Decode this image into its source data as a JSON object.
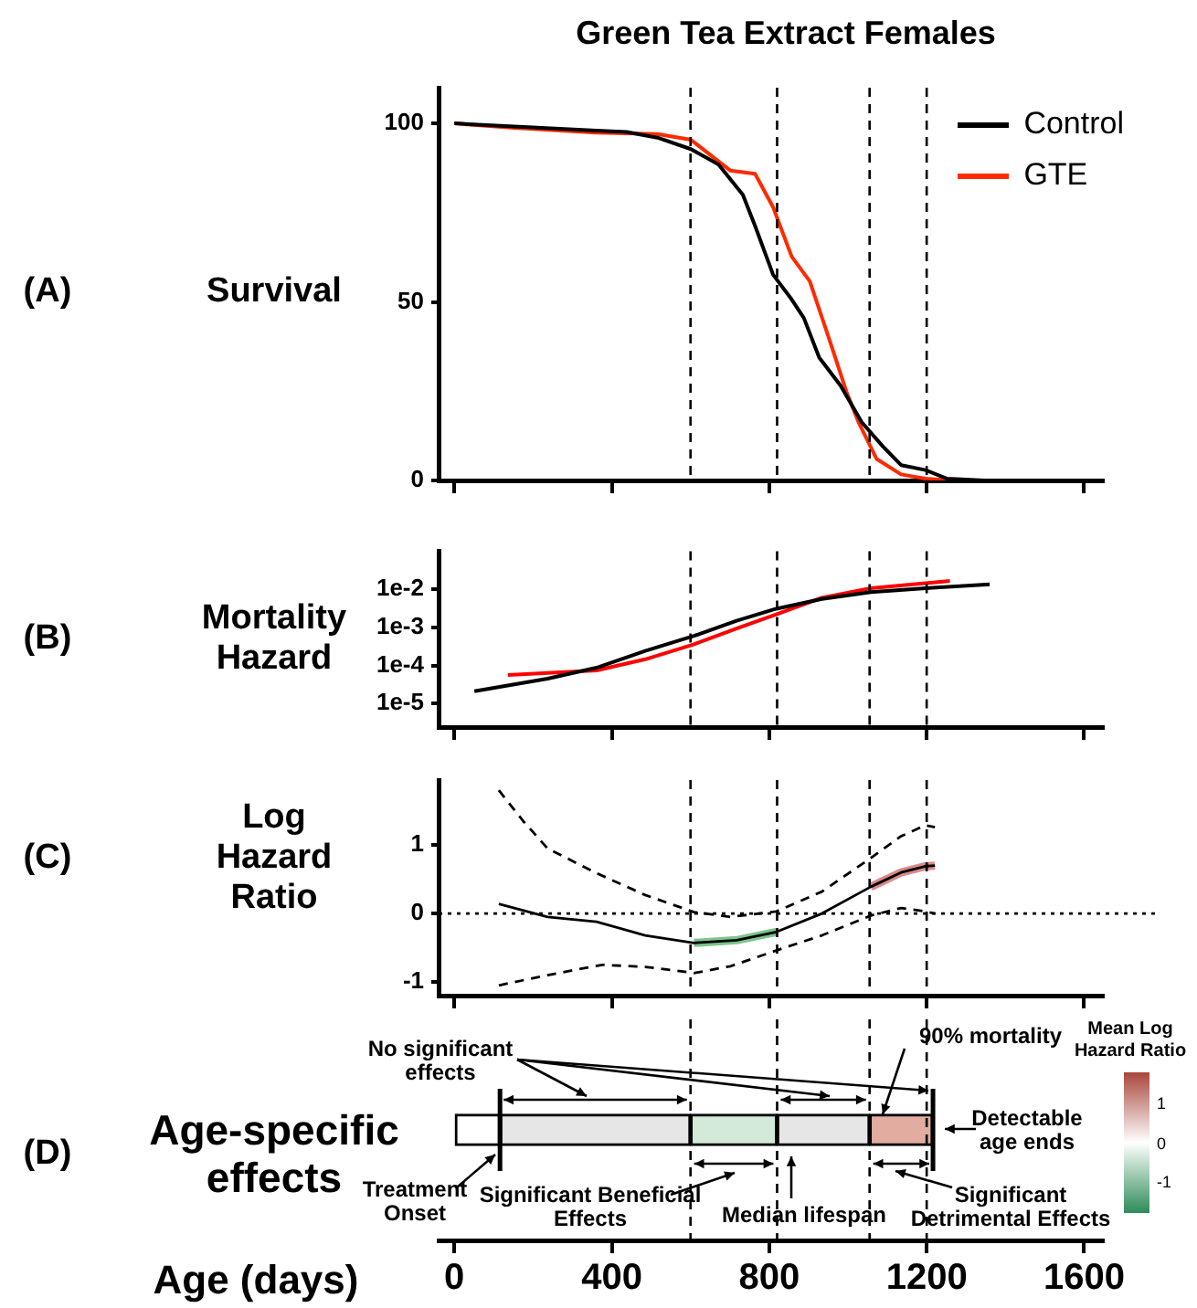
{
  "chart_data": [
    {
      "type": "line",
      "title": "Green Tea Extract Females",
      "ylabel": "Survival",
      "annotations": [
        "(A)"
      ],
      "xlim": [
        -40,
        1650
      ],
      "xticks": [
        {
          "value": 0,
          "label": null
        },
        {
          "value": 400,
          "label": null
        },
        {
          "value": 800,
          "label": null
        },
        {
          "value": 1200,
          "label": null
        },
        {
          "value": 1600,
          "label": null
        }
      ],
      "ylim": [
        0,
        110
      ],
      "yticks": [
        0,
        50,
        100
      ],
      "tick_labels": "y",
      "legend": "top right",
      "grid": false,
      "marker": "none",
      "ref_lines": [
        {
          "axis": "x",
          "value": 600,
          "line_style": "dashed"
        },
        {
          "axis": "x",
          "value": 820,
          "line_style": "dashed"
        },
        {
          "axis": "x",
          "value": 1055,
          "line_style": "dashed"
        },
        {
          "axis": "x",
          "value": 1200,
          "line_style": "dashed"
        }
      ],
      "series": [
        {
          "name": "Control",
          "color": "#000000",
          "x": [
            0,
            361,
            438,
            516,
            601,
            671,
            733,
            764,
            810,
            857,
            888,
            927,
            981,
            1035,
            1089,
            1135,
            1197,
            1252,
            1345
          ],
          "values": [
            100,
            98,
            97.6,
            96,
            92.8,
            88.5,
            80,
            71.3,
            57.6,
            50.7,
            45.5,
            34.4,
            26.6,
            16.3,
            9.5,
            4.3,
            2.9,
            0.5,
            0
          ]
        },
        {
          "name": "GTE",
          "color": "#ff2a00",
          "x": [
            0,
            144,
            361,
            516,
            601,
            701,
            764,
            810,
            857,
            903,
            950,
            996,
            1027,
            1073,
            1135,
            1197,
            1259
          ],
          "values": [
            100,
            98.8,
            97.4,
            97,
            95.4,
            86.8,
            85.9,
            76.5,
            62.7,
            55.8,
            40.4,
            24.9,
            16.3,
            6,
            1.7,
            0.5,
            0
          ]
        }
      ]
    },
    {
      "type": "line",
      "ylabel": "Mortality Hazard",
      "annotations": [
        "(B)"
      ],
      "log": "y",
      "xlim": [
        -40,
        1650
      ],
      "xticks": [
        {
          "value": 0,
          "label": null
        },
        {
          "value": 400,
          "label": null
        },
        {
          "value": 800,
          "label": null
        },
        {
          "value": 1200,
          "label": null
        },
        {
          "value": 1600,
          "label": null
        }
      ],
      "ylim": [
        2.4e-06,
        0.1
      ],
      "yticks": [
        {
          "value": 0.01,
          "label": "1e-2"
        },
        {
          "value": 0.001,
          "label": "1e-3"
        },
        {
          "value": 0.0001,
          "label": "1e-4"
        },
        {
          "value": 1e-05,
          "label": "1e-5"
        }
      ],
      "tick_labels": "y",
      "grid": false,
      "marker": "none",
      "ref_lines": [
        {
          "axis": "x",
          "value": 600,
          "line_style": "dashed"
        },
        {
          "axis": "x",
          "value": 820,
          "line_style": "dashed"
        },
        {
          "axis": "x",
          "value": 1055,
          "line_style": "dashed"
        },
        {
          "axis": "x",
          "value": 1200,
          "line_style": "dashed"
        }
      ],
      "series": [
        {
          "color": "#000000",
          "x": [
            51,
            237,
            361,
            485,
            609,
            717,
            818,
            934,
            1058,
            1197,
            1360
          ],
          "values": [
            2.1e-05,
            4.5e-05,
            8.7e-05,
            0.00024,
            0.0006,
            0.0015,
            0.0031,
            0.0056,
            0.0085,
            0.0107,
            0.0135
          ]
        },
        {
          "color": "#ff0000",
          "x": [
            136,
            361,
            485,
            609,
            717,
            818,
            934,
            1058,
            1259
          ],
          "values": [
            5.6e-05,
            7.4e-05,
            0.000145,
            0.00036,
            0.00093,
            0.0022,
            0.006,
            0.0107,
            0.0166
          ]
        }
      ]
    },
    {
      "type": "line",
      "ylabel": "Log Hazard Ratio",
      "annotations": [
        "(C)"
      ],
      "xlim": [
        -40,
        1650
      ],
      "xticks": [
        {
          "value": 0,
          "label": null
        },
        {
          "value": 400,
          "label": null
        },
        {
          "value": 800,
          "label": null
        },
        {
          "value": 1200,
          "label": null
        },
        {
          "value": 1600,
          "label": null
        }
      ],
      "ylim": [
        -1.2,
        1.95
      ],
      "yticks": [
        -1,
        0,
        1
      ],
      "tick_labels": "y",
      "grid": false,
      "marker": "none",
      "ref_lines": [
        {
          "axis": "y",
          "value": 0,
          "line_style": "dotted"
        },
        {
          "axis": "x",
          "value": 600,
          "line_style": "dashed"
        },
        {
          "axis": "x",
          "value": 820,
          "line_style": "dashed"
        },
        {
          "axis": "x",
          "value": 1055,
          "line_style": "dashed"
        },
        {
          "axis": "x",
          "value": 1200,
          "line_style": "dashed"
        }
      ],
      "series": [
        {
          "color": "#000000",
          "line_style": "solid",
          "x": [
            113,
            237,
            361,
            485,
            609,
            717,
            818,
            934,
            1058,
            1135,
            1197,
            1221
          ],
          "values": [
            0.14,
            -0.05,
            -0.12,
            -0.32,
            -0.43,
            -0.39,
            -0.27,
            0,
            0.39,
            0.6,
            0.69,
            0.7
          ]
        },
        {
          "color": "#000000",
          "line_style": "dashed",
          "x": [
            113,
            175,
            237,
            361,
            485,
            609,
            702,
            818,
            934,
            1058,
            1135,
            1197,
            1221
          ],
          "values": [
            1.8,
            1.35,
            0.95,
            0.59,
            0.27,
            0.02,
            -0.05,
            0.03,
            0.32,
            0.81,
            1.13,
            1.29,
            1.26
          ]
        },
        {
          "color": "#000000",
          "line_style": "dashed",
          "x": [
            113,
            237,
            376,
            485,
            609,
            702,
            818,
            934,
            1058,
            1135,
            1197,
            1221
          ],
          "values": [
            -1.05,
            -0.9,
            -0.75,
            -0.78,
            -0.87,
            -0.77,
            -0.54,
            -0.32,
            -0.03,
            0.08,
            0.03,
            0
          ]
        },
        {
          "color": "#7cc48a",
          "line_style": "solid",
          "x": [
            609,
            717,
            818
          ],
          "values": [
            -0.43,
            -0.39,
            -0.27
          ]
        },
        {
          "color": "#d98a8a",
          "line_style": "solid",
          "x": [
            1058,
            1135,
            1197,
            1221
          ],
          "values": [
            0.39,
            0.6,
            0.69,
            0.7
          ]
        }
      ]
    },
    {
      "type": "bar",
      "orientation": "horizontal",
      "stacked": true,
      "ylabel": "Age-specific effects",
      "xlabel": "Age (days)",
      "annotations": [
        "(D)",
        "No significant effects",
        "90% mortality",
        "Detectable age ends",
        "Treatment Onset",
        "Significant Beneficial Effects",
        "Median lifespan",
        "Significant Detrimental Effects"
      ],
      "categories": [
        null
      ],
      "xlim": [
        -40,
        1650
      ],
      "xticks": [
        0,
        400,
        800,
        1200,
        1600
      ],
      "tick_labels": "x",
      "clabel": "Mean Log Hazard Ratio",
      "clim": [
        -1.8,
        1.8
      ],
      "cticks": [
        1,
        0,
        -1
      ],
      "ref_lines": [
        {
          "axis": "x",
          "value": 600,
          "line_style": "dashed"
        },
        {
          "axis": "x",
          "value": 820,
          "line_style": "dashed"
        },
        {
          "axis": "x",
          "value": 1055,
          "line_style": "dashed"
        },
        {
          "axis": "x",
          "value": 1200,
          "line_style": "dashed"
        }
      ],
      "series": [
        {
          "color": "#ffffff",
          "values": [
            116
          ]
        },
        {
          "color": "#e6e6e6",
          "values": [
            484
          ]
        },
        {
          "color": "#d3eadb",
          "values": [
            220
          ]
        },
        {
          "color": "#e6e6e6",
          "values": [
            235
          ]
        },
        {
          "color": "#e3aca0",
          "values": [
            161
          ]
        }
      ]
    }
  ]
}
